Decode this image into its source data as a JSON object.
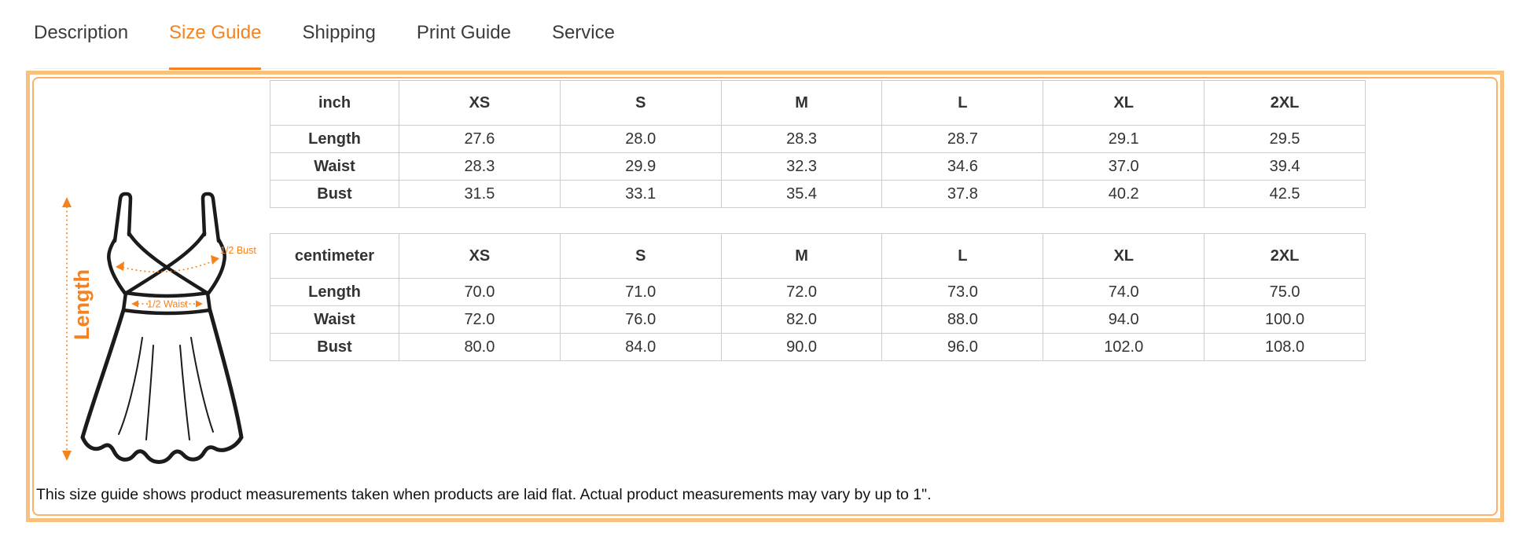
{
  "tabs": [
    {
      "label": "Description",
      "active": false
    },
    {
      "label": "Size Guide",
      "active": true
    },
    {
      "label": "Shipping",
      "active": false
    },
    {
      "label": "Print Guide",
      "active": false
    },
    {
      "label": "Service",
      "active": false
    }
  ],
  "size_guide": {
    "illustration": {
      "length_label": "Length",
      "bust_label": "1/2 Bust",
      "waist_label": "1/2 Waist"
    },
    "tables": [
      {
        "type": "table",
        "unit": "inch",
        "columns": [
          "XS",
          "S",
          "M",
          "L",
          "XL",
          "2XL"
        ],
        "rows": [
          {
            "label": "Length",
            "values": [
              "27.6",
              "28.0",
              "28.3",
              "28.7",
              "29.1",
              "29.5"
            ]
          },
          {
            "label": "Waist",
            "values": [
              "28.3",
              "29.9",
              "32.3",
              "34.6",
              "37.0",
              "39.4"
            ]
          },
          {
            "label": "Bust",
            "values": [
              "31.5",
              "33.1",
              "35.4",
              "37.8",
              "40.2",
              "42.5"
            ]
          }
        ]
      },
      {
        "type": "table",
        "unit": "centimeter",
        "columns": [
          "XS",
          "S",
          "M",
          "L",
          "XL",
          "2XL"
        ],
        "rows": [
          {
            "label": "Length",
            "values": [
              "70.0",
              "71.0",
              "72.0",
              "73.0",
              "74.0",
              "75.0"
            ]
          },
          {
            "label": "Waist",
            "values": [
              "72.0",
              "76.0",
              "82.0",
              "88.0",
              "94.0",
              "100.0"
            ]
          },
          {
            "label": "Bust",
            "values": [
              "80.0",
              "84.0",
              "90.0",
              "96.0",
              "102.0",
              "108.0"
            ]
          }
        ]
      }
    ],
    "note": "This size guide shows product measurements taken when products are laid flat. Actual product measurements may vary by up to 1\"."
  },
  "colors": {
    "accent_orange": "#f5821f",
    "box_border_orange": "#f9c17e",
    "table_border_gray": "#cccccc"
  }
}
